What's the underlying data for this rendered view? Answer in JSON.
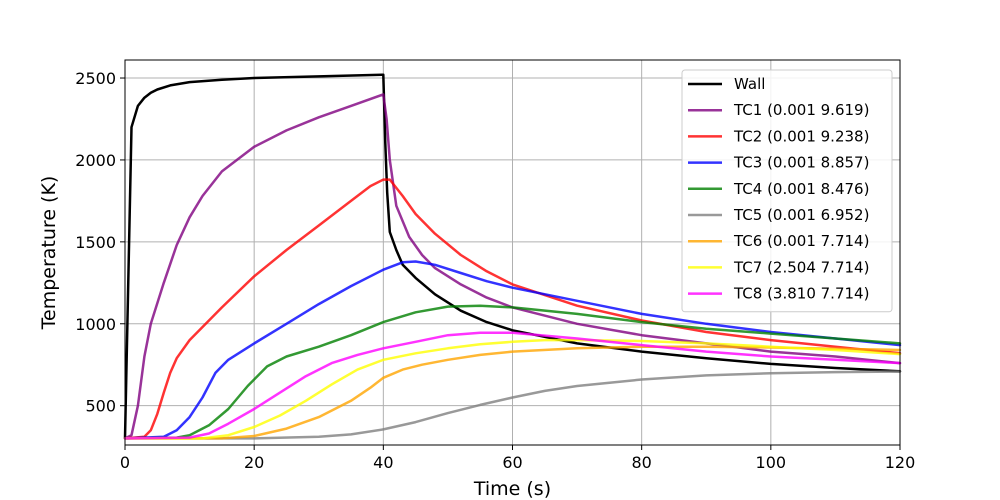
{
  "chart_data": {
    "type": "line",
    "title": "",
    "xlabel": "Time (s)",
    "ylabel": "Temperature (K)",
    "xlim": [
      0,
      120
    ],
    "ylim": [
      260,
      2610
    ],
    "xticks": [
      0,
      20,
      40,
      60,
      80,
      100,
      120
    ],
    "yticks": [
      500,
      1000,
      1500,
      2000,
      2500
    ],
    "grid": true,
    "legend_position": "top-right",
    "series": [
      {
        "name": "Wall",
        "color": "#000000",
        "opacity": 1.0,
        "points": [
          [
            0,
            300
          ],
          [
            1,
            2200
          ],
          [
            2,
            2330
          ],
          [
            3,
            2380
          ],
          [
            4,
            2410
          ],
          [
            5,
            2430
          ],
          [
            7,
            2455
          ],
          [
            10,
            2475
          ],
          [
            15,
            2490
          ],
          [
            20,
            2500
          ],
          [
            30,
            2510
          ],
          [
            40,
            2520
          ],
          [
            40.3,
            2100
          ],
          [
            40.6,
            1800
          ],
          [
            41,
            1560
          ],
          [
            42,
            1450
          ],
          [
            43,
            1360
          ],
          [
            45,
            1280
          ],
          [
            48,
            1180
          ],
          [
            52,
            1080
          ],
          [
            56,
            1010
          ],
          [
            60,
            960
          ],
          [
            70,
            880
          ],
          [
            80,
            830
          ],
          [
            90,
            790
          ],
          [
            100,
            755
          ],
          [
            110,
            730
          ],
          [
            120,
            710
          ]
        ]
      },
      {
        "name": "TC1 (0.001 9.619)",
        "color": "#800080",
        "opacity": 0.8,
        "points": [
          [
            0,
            300
          ],
          [
            1,
            320
          ],
          [
            2,
            500
          ],
          [
            3,
            800
          ],
          [
            4,
            1000
          ],
          [
            6,
            1250
          ],
          [
            8,
            1480
          ],
          [
            10,
            1650
          ],
          [
            12,
            1780
          ],
          [
            15,
            1930
          ],
          [
            20,
            2080
          ],
          [
            25,
            2180
          ],
          [
            30,
            2260
          ],
          [
            35,
            2330
          ],
          [
            40,
            2400
          ],
          [
            40.5,
            2250
          ],
          [
            41,
            2000
          ],
          [
            42,
            1720
          ],
          [
            44,
            1530
          ],
          [
            46,
            1420
          ],
          [
            48,
            1340
          ],
          [
            52,
            1240
          ],
          [
            56,
            1160
          ],
          [
            60,
            1100
          ],
          [
            70,
            1000
          ],
          [
            80,
            930
          ],
          [
            90,
            880
          ],
          [
            100,
            830
          ],
          [
            110,
            800
          ],
          [
            120,
            760
          ]
        ]
      },
      {
        "name": "TC2 (0.001 9.238)",
        "color": "#ff0000",
        "opacity": 0.8,
        "points": [
          [
            0,
            300
          ],
          [
            3,
            310
          ],
          [
            4,
            350
          ],
          [
            5,
            450
          ],
          [
            6,
            580
          ],
          [
            7,
            700
          ],
          [
            8,
            790
          ],
          [
            10,
            900
          ],
          [
            15,
            1100
          ],
          [
            20,
            1290
          ],
          [
            25,
            1450
          ],
          [
            30,
            1600
          ],
          [
            35,
            1750
          ],
          [
            38,
            1840
          ],
          [
            40,
            1880
          ],
          [
            41,
            1880
          ],
          [
            43,
            1780
          ],
          [
            45,
            1670
          ],
          [
            48,
            1550
          ],
          [
            52,
            1420
          ],
          [
            56,
            1320
          ],
          [
            60,
            1240
          ],
          [
            70,
            1110
          ],
          [
            80,
            1020
          ],
          [
            90,
            950
          ],
          [
            100,
            900
          ],
          [
            110,
            860
          ],
          [
            120,
            820
          ]
        ]
      },
      {
        "name": "TC3 (0.001 8.857)",
        "color": "#0000ff",
        "opacity": 0.8,
        "points": [
          [
            0,
            300
          ],
          [
            6,
            310
          ],
          [
            8,
            350
          ],
          [
            10,
            430
          ],
          [
            12,
            550
          ],
          [
            14,
            700
          ],
          [
            16,
            780
          ],
          [
            20,
            880
          ],
          [
            25,
            1000
          ],
          [
            30,
            1120
          ],
          [
            35,
            1230
          ],
          [
            40,
            1330
          ],
          [
            43,
            1375
          ],
          [
            45,
            1380
          ],
          [
            48,
            1360
          ],
          [
            52,
            1310
          ],
          [
            56,
            1260
          ],
          [
            60,
            1220
          ],
          [
            70,
            1140
          ],
          [
            80,
            1060
          ],
          [
            90,
            1000
          ],
          [
            100,
            950
          ],
          [
            110,
            910
          ],
          [
            120,
            870
          ]
        ]
      },
      {
        "name": "TC4 (0.001 8.476)",
        "color": "#008000",
        "opacity": 0.8,
        "points": [
          [
            0,
            300
          ],
          [
            8,
            305
          ],
          [
            10,
            320
          ],
          [
            13,
            380
          ],
          [
            16,
            480
          ],
          [
            19,
            620
          ],
          [
            22,
            740
          ],
          [
            25,
            800
          ],
          [
            30,
            860
          ],
          [
            35,
            930
          ],
          [
            40,
            1010
          ],
          [
            45,
            1070
          ],
          [
            50,
            1105
          ],
          [
            55,
            1110
          ],
          [
            60,
            1100
          ],
          [
            70,
            1060
          ],
          [
            80,
            1010
          ],
          [
            90,
            970
          ],
          [
            100,
            940
          ],
          [
            110,
            910
          ],
          [
            120,
            880
          ]
        ]
      },
      {
        "name": "TC5 (0.001 6.952)",
        "color": "#808080",
        "opacity": 0.8,
        "points": [
          [
            0,
            300
          ],
          [
            20,
            300
          ],
          [
            30,
            310
          ],
          [
            35,
            325
          ],
          [
            40,
            355
          ],
          [
            45,
            400
          ],
          [
            50,
            455
          ],
          [
            55,
            505
          ],
          [
            60,
            550
          ],
          [
            65,
            590
          ],
          [
            70,
            620
          ],
          [
            80,
            660
          ],
          [
            90,
            685
          ],
          [
            100,
            698
          ],
          [
            110,
            705
          ],
          [
            120,
            708
          ]
        ]
      },
      {
        "name": "TC6 (0.001 7.714)",
        "color": "#ffa500",
        "opacity": 0.8,
        "points": [
          [
            0,
            300
          ],
          [
            15,
            300
          ],
          [
            20,
            315
          ],
          [
            25,
            360
          ],
          [
            30,
            430
          ],
          [
            35,
            530
          ],
          [
            38,
            610
          ],
          [
            40,
            670
          ],
          [
            43,
            720
          ],
          [
            46,
            750
          ],
          [
            50,
            780
          ],
          [
            55,
            810
          ],
          [
            60,
            830
          ],
          [
            70,
            850
          ],
          [
            80,
            860
          ],
          [
            90,
            860
          ],
          [
            100,
            855
          ],
          [
            110,
            848
          ],
          [
            120,
            840
          ]
        ]
      },
      {
        "name": "TC7 (2.504 7.714)",
        "color": "#ffff00",
        "opacity": 0.8,
        "points": [
          [
            0,
            300
          ],
          [
            12,
            300
          ],
          [
            16,
            320
          ],
          [
            20,
            370
          ],
          [
            24,
            440
          ],
          [
            28,
            530
          ],
          [
            32,
            630
          ],
          [
            36,
            720
          ],
          [
            40,
            780
          ],
          [
            45,
            820
          ],
          [
            50,
            850
          ],
          [
            55,
            875
          ],
          [
            60,
            890
          ],
          [
            65,
            900
          ],
          [
            70,
            900
          ],
          [
            80,
            895
          ],
          [
            90,
            880
          ],
          [
            100,
            860
          ],
          [
            110,
            840
          ],
          [
            120,
            815
          ]
        ]
      },
      {
        "name": "TC8 (3.810 7.714)",
        "color": "#ff00ff",
        "opacity": 0.8,
        "points": [
          [
            0,
            300
          ],
          [
            10,
            305
          ],
          [
            13,
            330
          ],
          [
            16,
            390
          ],
          [
            20,
            480
          ],
          [
            24,
            580
          ],
          [
            28,
            680
          ],
          [
            32,
            760
          ],
          [
            36,
            810
          ],
          [
            40,
            850
          ],
          [
            45,
            890
          ],
          [
            50,
            930
          ],
          [
            55,
            945
          ],
          [
            60,
            945
          ],
          [
            70,
            910
          ],
          [
            80,
            870
          ],
          [
            90,
            830
          ],
          [
            100,
            800
          ],
          [
            110,
            780
          ],
          [
            120,
            760
          ]
        ]
      }
    ]
  }
}
